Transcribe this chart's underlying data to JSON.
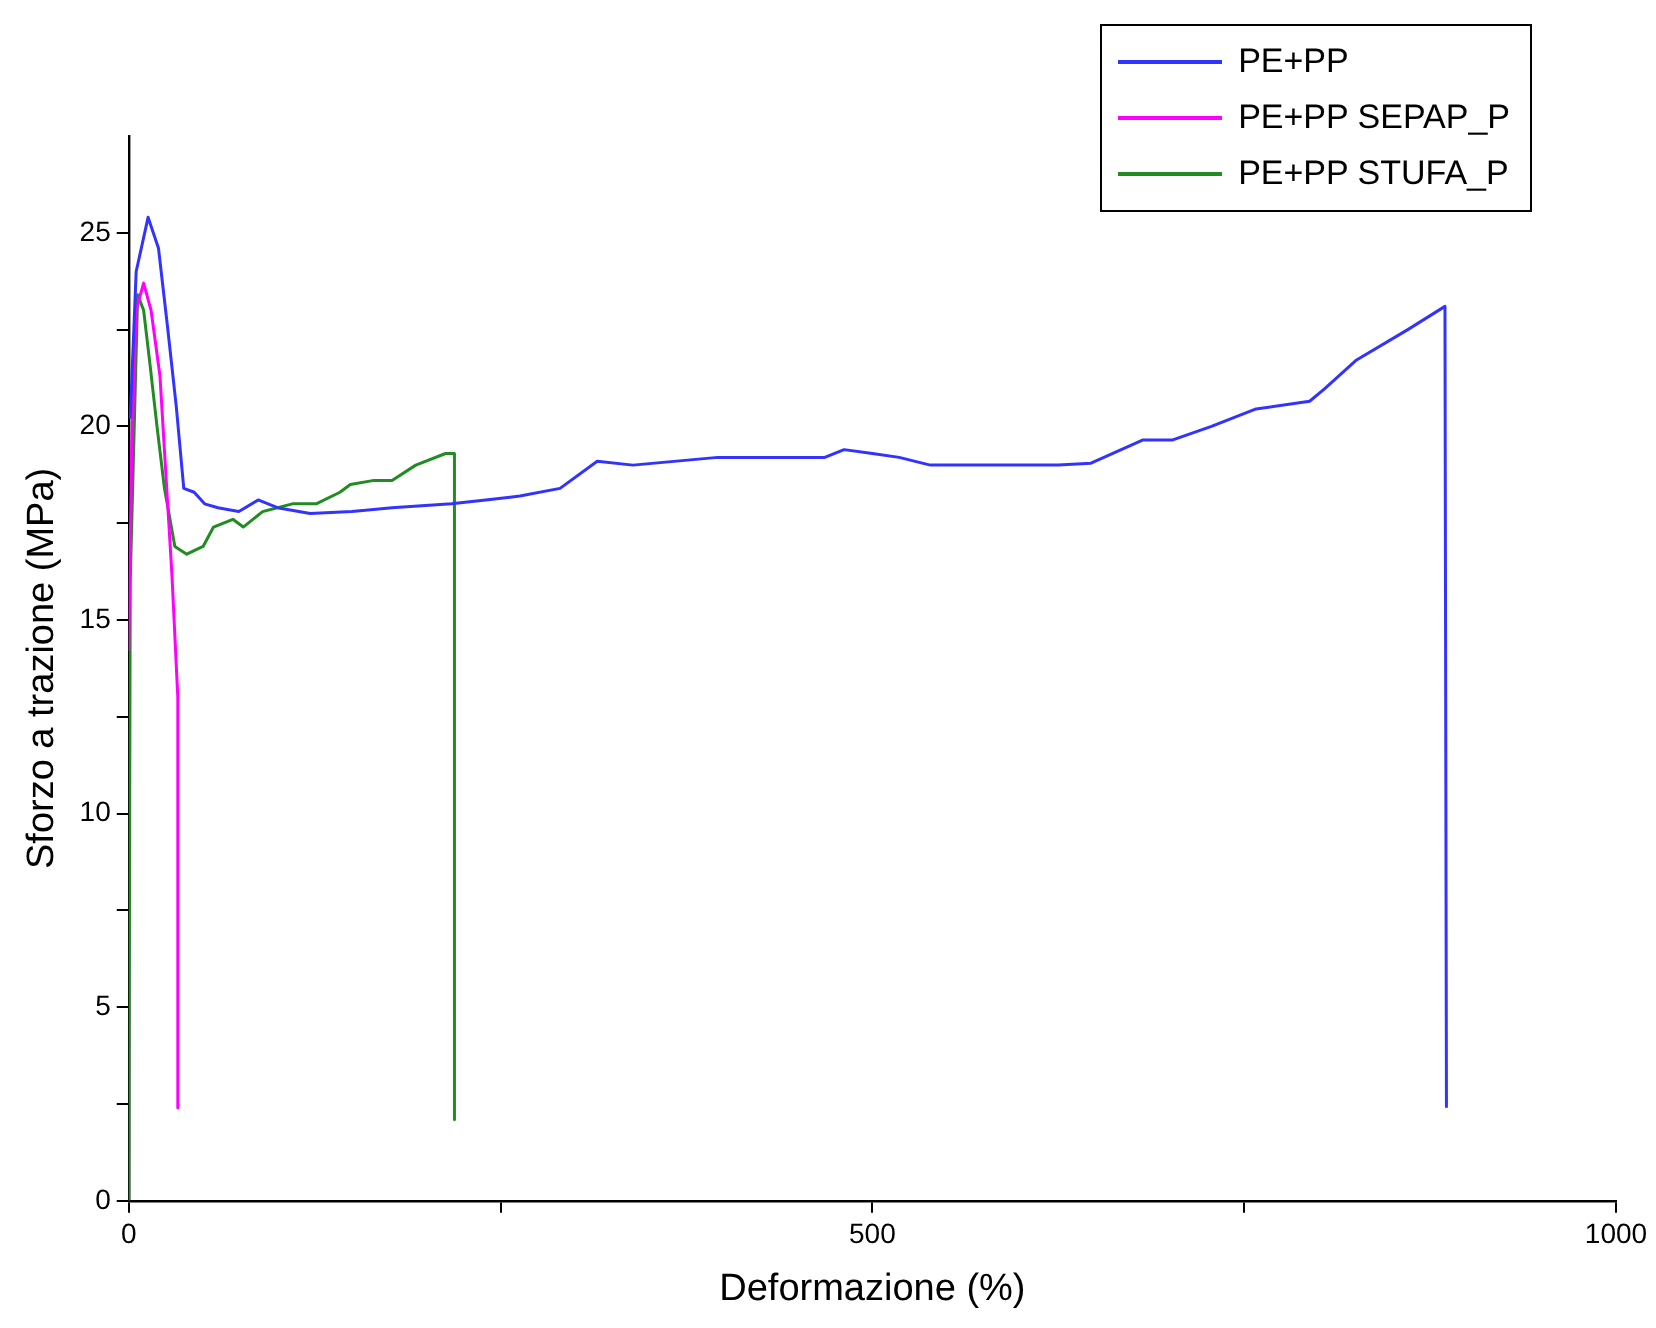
{
  "chart_data": {
    "type": "line",
    "xlabel": "Deformazione (%)",
    "ylabel": "Sforzo a trazione (MPa)",
    "xlim": [
      0,
      1000
    ],
    "xticks": [
      0,
      {
        "value": 250,
        "label": null
      },
      500,
      {
        "value": 750,
        "label": null
      },
      1000
    ],
    "ylim": [
      0,
      27.5
    ],
    "yticks": [
      0,
      {
        "value": 2.5,
        "label": null
      },
      5,
      {
        "value": 7.5,
        "label": null
      },
      10,
      {
        "value": 12.5,
        "label": null
      },
      15,
      {
        "value": 17.5,
        "label": null
      },
      20,
      {
        "value": 22.5,
        "label": null
      },
      25
    ],
    "grid": false,
    "legend": "top right",
    "marker": "none",
    "line_style": "solid",
    "series": [
      {
        "name": "PE+PP",
        "color": "#3333ff",
        "x": [
          1,
          5,
          13,
          20,
          26,
          32,
          37,
          44,
          51,
          60,
          74,
          87,
          100,
          122,
          150,
          177,
          217,
          240,
          263,
          290,
          315,
          339,
          396,
          440,
          468,
          481,
          500,
          518,
          539,
          580,
          625,
          647,
          682,
          702,
          728,
          758,
          794,
          804,
          825,
          860,
          885,
          886
        ],
        "values": [
          20.2,
          24.0,
          25.4,
          24.6,
          22.6,
          20.5,
          18.4,
          18.3,
          18.0,
          17.9,
          17.8,
          18.1,
          17.9,
          17.75,
          17.8,
          17.9,
          18.0,
          18.1,
          18.2,
          18.4,
          19.1,
          19.0,
          19.2,
          19.2,
          19.2,
          19.4,
          19.3,
          19.2,
          19.0,
          19.0,
          19.0,
          19.05,
          19.65,
          19.65,
          20.0,
          20.45,
          20.65,
          20.97,
          21.7,
          22.5,
          23.1,
          2.4
        ]
      },
      {
        "name": "PE+PP SEPAP_P",
        "color": "#ff00ff",
        "x": [
          0,
          2,
          5,
          10,
          15,
          21,
          26,
          29,
          33,
          33
        ],
        "values": [
          14.2,
          19.5,
          23.0,
          23.7,
          23.0,
          21.3,
          18.1,
          16.2,
          13.0,
          2.4
        ]
      },
      {
        "name": "PE+PP STUFA_P",
        "color": "#228b22",
        "x": [
          0,
          1,
          6,
          10,
          14,
          19,
          24,
          31,
          39,
          50,
          57,
          70,
          77,
          90,
          110,
          126,
          142,
          149,
          164,
          177,
          193,
          213,
          219,
          219
        ],
        "values": [
          0,
          16,
          23.4,
          23.0,
          21.7,
          20.0,
          18.4,
          16.9,
          16.7,
          16.9,
          17.4,
          17.6,
          17.4,
          17.8,
          18.0,
          18.0,
          18.3,
          18.5,
          18.6,
          18.6,
          19.0,
          19.3,
          19.3,
          2.1
        ]
      }
    ]
  }
}
